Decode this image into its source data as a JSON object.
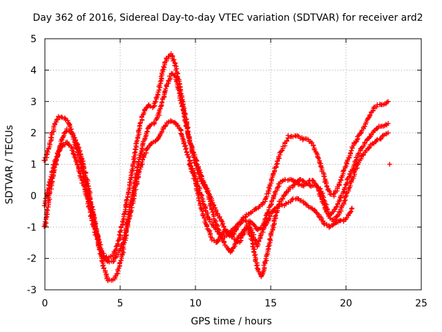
{
  "chart_data": {
    "type": "scatter",
    "title": "Day 362 of 2016, Sidereal Day-to-day VTEC variation (SDTVAR) for receiver ard2",
    "xlabel": "GPS time / hours",
    "ylabel": "SDTVAR / TECUs",
    "xlim": [
      0,
      25
    ],
    "ylim": [
      -3,
      5
    ],
    "xticks": [
      0,
      5,
      10,
      15,
      20,
      25
    ],
    "yticks": [
      -3,
      -2,
      -1,
      0,
      1,
      2,
      3,
      4,
      5
    ],
    "grid": true,
    "marker": "plus",
    "color": "#ff0000",
    "series": [
      {
        "name": "track-1",
        "x": [
          0.0,
          0.3,
          0.6,
          0.9,
          1.2,
          1.5,
          1.8,
          2.1,
          2.4,
          2.7,
          3.0,
          3.3,
          3.6,
          3.9,
          4.2,
          4.5,
          4.8,
          5.1,
          5.4,
          5.7,
          6.0,
          6.3,
          6.6,
          6.9,
          7.2,
          7.5,
          7.8,
          8.1,
          8.4,
          8.7,
          9.0,
          9.3,
          9.6,
          9.9,
          10.2,
          10.5,
          10.8,
          11.1,
          11.4,
          11.7,
          12.0,
          12.3,
          12.6,
          12.9,
          13.2,
          13.5,
          13.8,
          14.1,
          14.4,
          14.7,
          15.0,
          15.3,
          15.6,
          15.9,
          16.2,
          16.5,
          16.8,
          17.1,
          17.4,
          17.7,
          18.0,
          18.3,
          18.6,
          18.9,
          19.2,
          19.5,
          19.8,
          20.1,
          20.4,
          20.7,
          21.0,
          21.3,
          21.6,
          21.9,
          22.2,
          22.5,
          22.8
        ],
        "y": [
          1.1,
          1.6,
          2.2,
          2.5,
          2.5,
          2.4,
          2.0,
          1.5,
          1.0,
          0.4,
          -0.2,
          -0.9,
          -1.5,
          -1.9,
          -2.0,
          -1.9,
          -1.6,
          -1.0,
          -0.3,
          0.5,
          1.4,
          2.2,
          2.7,
          2.9,
          2.8,
          3.2,
          3.9,
          4.4,
          4.5,
          4.1,
          3.4,
          2.6,
          1.8,
          1.2,
          0.7,
          0.4,
          0.2,
          -0.2,
          -0.5,
          -0.8,
          -1.1,
          -1.3,
          -1.2,
          -0.9,
          -0.7,
          -0.6,
          -0.5,
          -0.4,
          -0.3,
          -0.1,
          0.4,
          0.9,
          1.3,
          1.6,
          1.9,
          1.9,
          1.9,
          1.8,
          1.8,
          1.7,
          1.4,
          1.0,
          0.5,
          0.1,
          0.0,
          0.3,
          0.7,
          1.1,
          1.5,
          1.8,
          2.0,
          2.3,
          2.6,
          2.8,
          2.9,
          2.9,
          3.0
        ]
      },
      {
        "name": "track-2",
        "x": [
          0.0,
          0.3,
          0.6,
          0.9,
          1.2,
          1.5,
          1.8,
          2.1,
          2.4,
          2.7,
          3.0,
          3.3,
          3.6,
          3.9,
          4.2,
          4.5,
          4.8,
          5.1,
          5.4,
          5.7,
          6.0,
          6.3,
          6.6,
          6.9,
          7.2,
          7.5,
          7.8,
          8.1,
          8.4,
          8.7,
          9.0,
          9.3,
          9.6,
          9.9,
          10.2,
          10.5,
          10.8,
          11.1,
          11.4,
          11.7,
          12.0,
          12.3,
          12.6,
          12.9,
          13.2,
          13.5,
          13.8,
          14.1,
          14.4,
          14.7,
          15.0,
          15.3,
          15.6,
          15.9,
          16.2,
          16.5,
          16.8,
          17.1,
          17.4,
          17.7,
          18.0,
          18.3,
          18.6,
          18.9,
          19.2,
          19.5,
          19.8,
          20.1,
          20.4,
          20.7,
          21.0,
          21.3,
          21.6,
          21.9,
          22.2,
          22.5,
          22.8
        ],
        "y": [
          -1.0,
          0.0,
          0.8,
          1.4,
          1.9,
          2.1,
          2.0,
          1.7,
          1.3,
          0.7,
          0.0,
          -0.8,
          -1.6,
          -2.3,
          -2.7,
          -2.7,
          -2.5,
          -2.0,
          -1.2,
          -0.3,
          0.5,
          1.2,
          1.8,
          2.2,
          2.3,
          2.5,
          3.0,
          3.5,
          3.9,
          3.8,
          3.1,
          2.4,
          1.8,
          1.3,
          0.9,
          0.5,
          0.1,
          -0.5,
          -0.9,
          -1.3,
          -1.6,
          -1.8,
          -1.6,
          -1.3,
          -1.1,
          -1.0,
          -1.5,
          -2.3,
          -2.6,
          -2.0,
          -1.3,
          -0.7,
          -0.2,
          0.0,
          0.2,
          0.3,
          0.5,
          0.5,
          0.4,
          0.3,
          0.3,
          0.2,
          -0.2,
          -0.6,
          -0.5,
          -0.2,
          0.1,
          0.5,
          0.8,
          1.2,
          1.5,
          1.7,
          1.9,
          2.1,
          2.2,
          2.2,
          2.3
        ]
      },
      {
        "name": "track-3",
        "x": [
          0.0,
          0.3,
          0.6,
          0.9,
          1.2,
          1.5,
          1.8,
          2.1,
          2.4,
          2.7,
          3.0,
          3.3,
          3.6,
          3.9,
          4.2,
          4.5,
          4.8,
          5.1,
          5.4,
          5.7,
          6.0,
          6.3,
          6.6,
          6.9,
          7.2,
          7.5,
          7.8,
          8.1,
          8.4,
          8.7,
          9.0,
          9.3,
          9.6,
          9.9,
          10.2,
          10.5,
          10.8,
          11.1,
          11.4,
          11.7,
          12.0,
          12.3,
          12.6,
          12.9,
          13.2,
          13.5,
          13.8,
          14.1,
          14.4,
          14.7,
          15.0,
          15.3,
          15.6,
          15.9,
          16.2,
          16.5,
          16.8,
          17.1,
          17.4,
          17.7,
          18.0,
          18.3,
          18.6,
          18.9,
          19.2,
          19.5,
          19.8,
          20.1,
          20.4,
          20.7,
          21.0,
          21.3,
          21.6,
          21.9,
          22.2,
          22.5,
          22.8
        ],
        "y": [
          -0.3,
          0.4,
          1.0,
          1.4,
          1.6,
          1.7,
          1.5,
          1.1,
          0.6,
          0.1,
          -0.5,
          -1.1,
          -1.6,
          -2.0,
          -2.1,
          -2.1,
          -1.9,
          -1.6,
          -1.1,
          -0.5,
          0.2,
          0.8,
          1.3,
          1.6,
          1.7,
          1.8,
          2.1,
          2.3,
          2.4,
          2.3,
          2.1,
          1.6,
          1.1,
          0.7,
          0.3,
          -0.2,
          -0.6,
          -0.9,
          -1.1,
          -1.3,
          -1.3,
          -1.2,
          -1.0,
          -0.9,
          -0.8,
          -0.8,
          -0.9,
          -1.1,
          -1.0,
          -0.7,
          -0.3,
          0.1,
          0.4,
          0.5,
          0.5,
          0.5,
          0.4,
          0.3,
          0.4,
          0.5,
          0.4,
          0.0,
          -0.4,
          -0.7,
          -0.8,
          -0.6,
          -0.3,
          0.1,
          0.5,
          0.9,
          1.2,
          1.4,
          1.6,
          1.7,
          1.8,
          1.9,
          2.0
        ]
      },
      {
        "name": "track-4",
        "x": [
          9.6,
          9.9,
          10.2,
          10.5,
          10.8,
          11.1,
          11.4,
          11.7,
          12.0,
          12.3,
          12.6,
          12.9,
          13.2,
          13.5,
          13.8,
          14.1,
          14.4,
          14.7,
          15.0,
          15.3,
          15.6,
          15.9,
          16.2,
          16.5,
          16.8,
          17.1,
          17.4,
          17.7,
          18.0,
          18.3,
          18.6,
          18.9,
          19.2,
          19.5,
          19.8,
          20.1,
          20.4
        ],
        "y": [
          1.0,
          0.6,
          0.0,
          -0.6,
          -1.0,
          -1.4,
          -1.5,
          -1.3,
          -1.1,
          -1.2,
          -1.4,
          -1.5,
          -1.2,
          -0.9,
          -1.2,
          -1.6,
          -1.2,
          -0.9,
          -0.6,
          -0.4,
          -0.3,
          -0.3,
          -0.2,
          -0.1,
          -0.1,
          -0.2,
          -0.3,
          -0.4,
          -0.5,
          -0.7,
          -0.9,
          -1.0,
          -0.9,
          -0.8,
          -0.8,
          -0.7,
          -0.4
        ]
      },
      {
        "name": "isolated",
        "x": [
          22.9
        ],
        "y": [
          1.0
        ]
      }
    ]
  }
}
